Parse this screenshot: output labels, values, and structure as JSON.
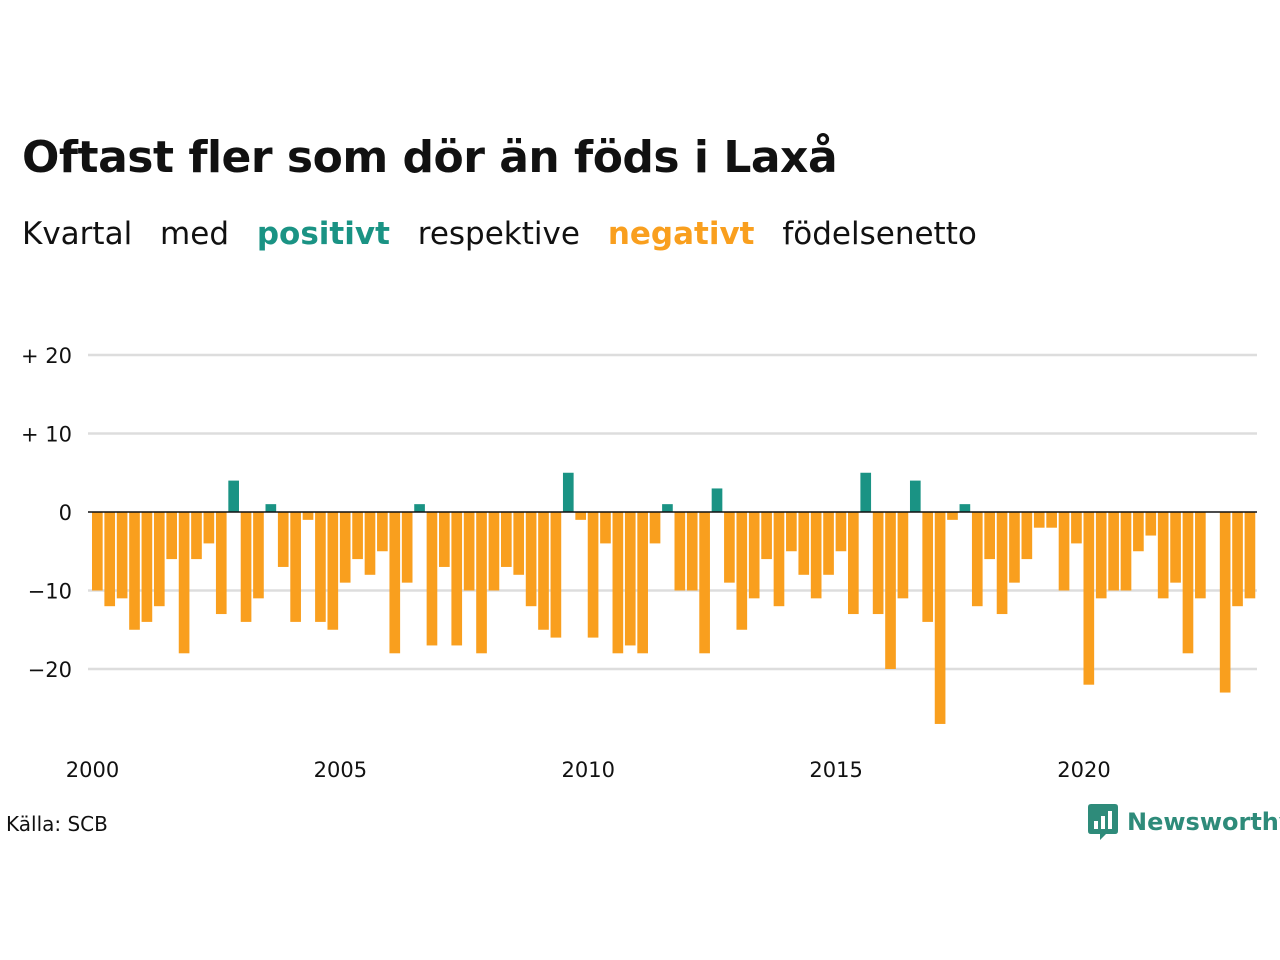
{
  "title": "Oftast fler som dör än föds i Laxå",
  "subtitle": {
    "part1": "Kvartal",
    "part2": "med",
    "positive_word": "positivt",
    "part3": "respektive",
    "negative_word": "negativt",
    "part4": "födelsenetto"
  },
  "source": "Källa: SCB",
  "brand": "Newsworthy",
  "colors": {
    "positive": "#1a9384",
    "negative": "#f99f1e",
    "grid": "#dddddd",
    "zero_line": "#111111",
    "brand": "#2e8b7a"
  },
  "chart_data": {
    "type": "bar",
    "x_start": "2000 Q1",
    "x_tick_labels": [
      "2000",
      "2005",
      "2010",
      "2015",
      "2020"
    ],
    "y_tick_labels": [
      "+ 20",
      "+ 10",
      "0",
      "−10",
      "−20"
    ],
    "y_ticks": [
      20,
      10,
      0,
      -10,
      -20
    ],
    "ylim": [
      -30,
      20
    ],
    "grid": true,
    "values": [
      -10,
      -12,
      -11,
      -15,
      -14,
      -12,
      -6,
      -18,
      -6,
      -4,
      -13,
      4,
      -14,
      -11,
      1,
      -7,
      -14,
      -1,
      -14,
      -15,
      -9,
      -6,
      -8,
      -5,
      -18,
      -9,
      1,
      -17,
      -7,
      -17,
      -10,
      -18,
      -10,
      -7,
      -8,
      -12,
      -15,
      -16,
      5,
      -1,
      -16,
      -4,
      -18,
      -17,
      -18,
      -4,
      1,
      -10,
      -10,
      -18,
      3,
      -9,
      -15,
      -11,
      -6,
      -12,
      -5,
      -8,
      -11,
      -8,
      -5,
      -13,
      5,
      -13,
      -20,
      -11,
      4,
      -14,
      -27,
      -1,
      1,
      -12,
      -6,
      -13,
      -9,
      -6,
      -2,
      -2,
      -10,
      -4,
      -22,
      -11,
      -10,
      -10,
      -5,
      -3,
      -11,
      -9,
      -18,
      -11,
      0,
      -23,
      -12,
      -11
    ]
  }
}
